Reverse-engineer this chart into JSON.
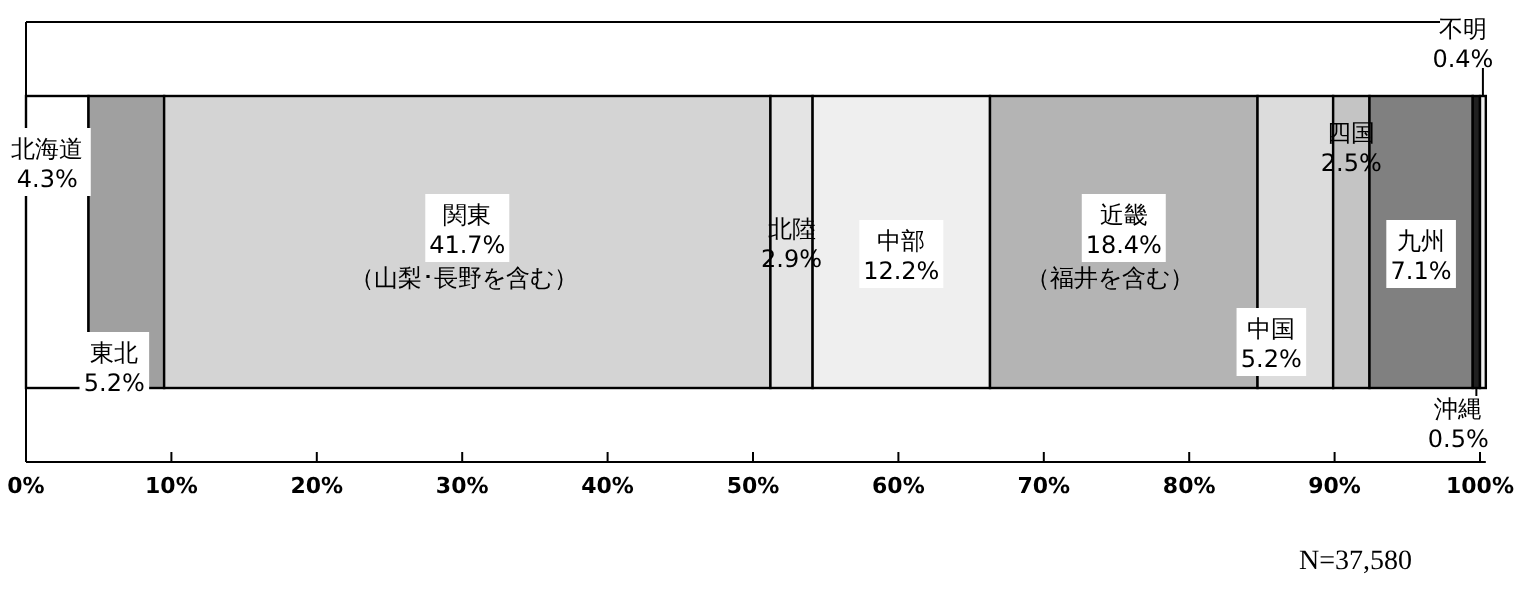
{
  "chart_data": {
    "type": "bar",
    "orientation": "horizontal",
    "stacked": true,
    "categories": [
      null
    ],
    "series": [
      {
        "name": "北海道",
        "color": "#ffffff",
        "values": [
          4.3
        ],
        "value_labels": [
          "4.3%"
        ]
      },
      {
        "name": "東北",
        "color": "#a0a0a0",
        "values": [
          5.2
        ],
        "value_labels": [
          "5.2%"
        ]
      },
      {
        "name": "関東",
        "color": "#d4d4d4",
        "values": [
          41.7
        ],
        "value_labels": [
          "41.7%"
        ]
      },
      {
        "name": "北陸",
        "color": "#e4e4e4",
        "values": [
          2.9
        ],
        "value_labels": [
          "2.9%"
        ]
      },
      {
        "name": "中部",
        "color": "#efefef",
        "values": [
          12.2
        ],
        "value_labels": [
          "12.2%"
        ]
      },
      {
        "name": "近畿",
        "color": "#b4b4b4",
        "values": [
          18.4
        ],
        "value_labels": [
          "18.4%"
        ]
      },
      {
        "name": "中国",
        "color": "#dcdcdc",
        "values": [
          5.2
        ],
        "value_labels": [
          "5.2%"
        ]
      },
      {
        "name": "四国",
        "color": "#c4c4c4",
        "values": [
          2.5
        ],
        "value_labels": [
          "2.5%"
        ]
      },
      {
        "name": "九州",
        "color": "#808080",
        "values": [
          7.1
        ],
        "value_labels": [
          "7.1%"
        ]
      },
      {
        "name": "沖縄",
        "color": "#202020",
        "values": [
          0.5
        ],
        "value_labels": [
          "0.5%"
        ]
      },
      {
        "name": "不明",
        "color": "#f0f0f0",
        "values": [
          0.4
        ],
        "value_labels": [
          "0.4%"
        ]
      }
    ],
    "xlim": [
      0,
      100.4
    ],
    "xticks": [
      {
        "value": 0,
        "label": "0%"
      },
      {
        "value": 10,
        "label": "10%"
      },
      {
        "value": 20,
        "label": "20%"
      },
      {
        "value": 30,
        "label": "30%"
      },
      {
        "value": 40,
        "label": "40%"
      },
      {
        "value": 50,
        "label": "50%"
      },
      {
        "value": 60,
        "label": "60%"
      },
      {
        "value": 70,
        "label": "70%"
      },
      {
        "value": 80,
        "label": "80%"
      },
      {
        "value": 90,
        "label": "90%"
      },
      {
        "value": 100,
        "label": "100%"
      }
    ],
    "annotations": [
      "（山梨･長野を含む）",
      "（福井を含む）",
      "N=37,580"
    ],
    "legend": false,
    "grid": false
  }
}
